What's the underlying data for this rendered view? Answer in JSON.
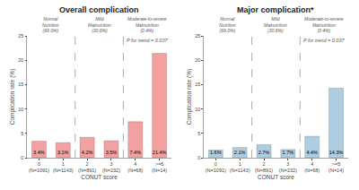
{
  "chart_data": [
    {
      "type": "bar",
      "title": "Overall complication",
      "xlabel": "CONUT score",
      "ylabel": "Complication rate (%)",
      "categories": [
        "0\n(N=1091)",
        "1\n(N=1143)",
        "2\n(N=891)",
        "3\n(N=232)",
        "4\n(N=68)",
        ">=5\n(N=14)"
      ],
      "values": [
        3.4,
        3.1,
        4.2,
        3.5,
        7.4,
        21.4
      ],
      "value_labels": [
        "3.4%",
        "3.1%",
        "4.2%",
        "3.5%",
        "7.4%",
        "21.4%"
      ],
      "data_labels": true,
      "color": "#F2A0A0",
      "ylim": [
        0,
        25
      ],
      "yticks": [
        0,
        5,
        10,
        15,
        20,
        25
      ],
      "grid": false,
      "annotations": [
        "Normal\nNutrition\n(69.0%)",
        "Mild\nMalnutrition\n(30.6%)",
        "Moderate-to-severe\nMalnutrition\n(0.4%)",
        "P for trend = 0.037"
      ]
    },
    {
      "type": "bar",
      "title": "Major complication*",
      "xlabel": "CONUT score",
      "ylabel": "Complication rate (%)",
      "categories": [
        "0\n(N=1091)",
        "1\n(N=1143)",
        "2\n(N=891)",
        "3\n(N=232)",
        "4\n(N=68)",
        ">=5\n(N=14)"
      ],
      "values": [
        1.6,
        2.1,
        2.7,
        1.7,
        4.4,
        14.3
      ],
      "value_labels": [
        "1.6%",
        "2.1%",
        "2.7%",
        "1.7%",
        "4.4%",
        "14.3%"
      ],
      "data_labels": true,
      "color": "#AECDE0",
      "ylim": [
        0,
        25
      ],
      "yticks": [
        0,
        5,
        10,
        15,
        20,
        25
      ],
      "grid": false,
      "annotations": [
        "Normal\nNutrition\n(69.0%)",
        "Mild\nMalnutrition\n(30.6%)",
        "Moderate-to-severe\nMalnutrition\n(0.4%)",
        "P for trend = 0.037"
      ]
    }
  ]
}
